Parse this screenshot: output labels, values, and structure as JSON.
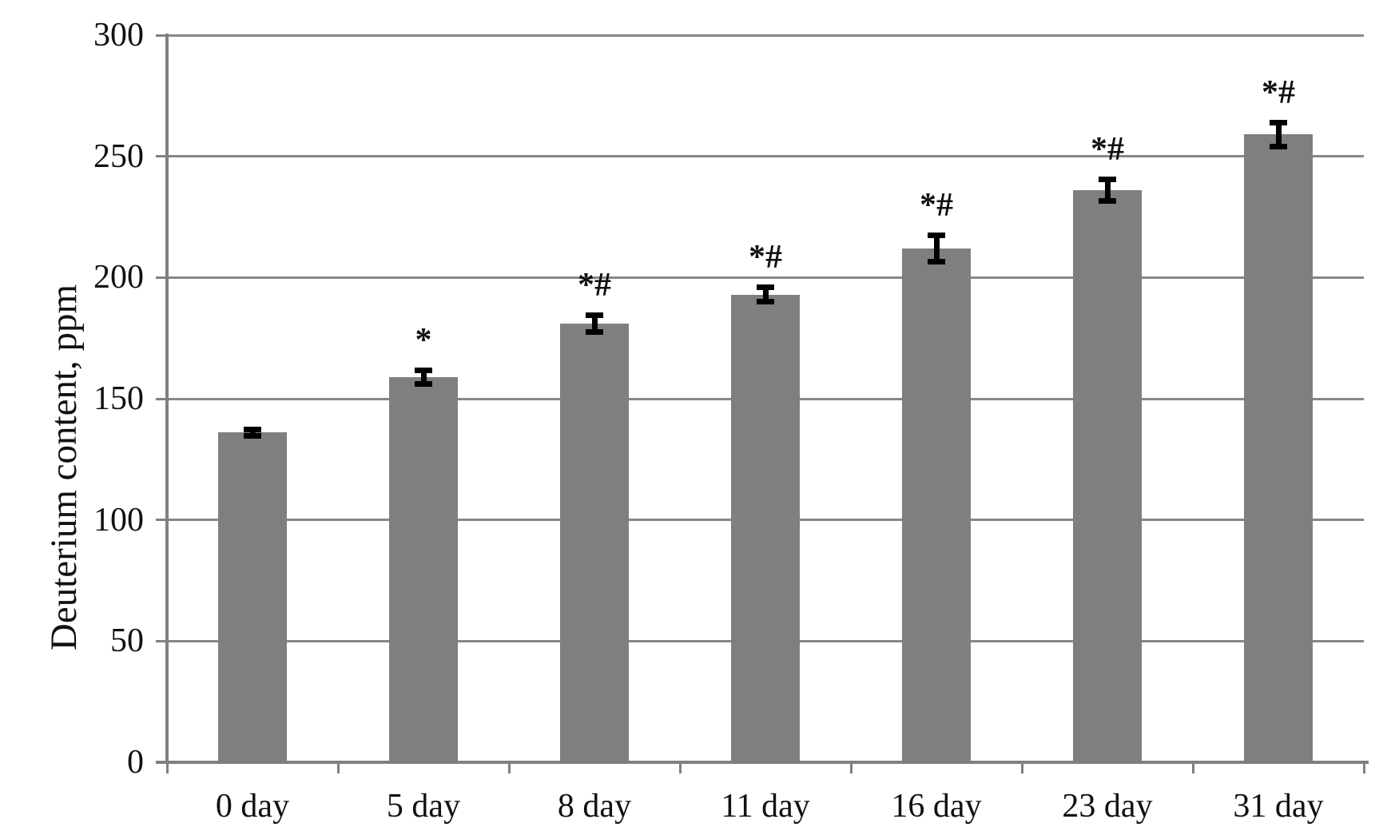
{
  "chart_data": {
    "type": "bar",
    "title": "",
    "xlabel": "",
    "ylabel": "Deuterium content, ppm",
    "categories": [
      "0 day",
      "5 day",
      "8 day",
      "11 day",
      "16 day",
      "23 day",
      "31 day"
    ],
    "values": [
      136,
      159,
      181,
      193,
      212,
      236,
      259
    ],
    "error_bars": [
      1.5,
      3,
      3.5,
      3,
      5.5,
      4.5,
      5
    ],
    "annotations": [
      "",
      "*",
      "*#",
      "*#",
      "*#",
      "*#",
      "*#"
    ],
    "ylim": [
      0,
      300
    ],
    "ytick_step": 50,
    "yticks": [
      0,
      50,
      100,
      150,
      200,
      250,
      300
    ],
    "grid": true,
    "legend": "none",
    "colors": {
      "bar": "#7f7f7f",
      "gridline": "#878787",
      "axis": "#808080",
      "error_bar": "#000000",
      "text": "#111111",
      "background": "#ffffff"
    }
  }
}
